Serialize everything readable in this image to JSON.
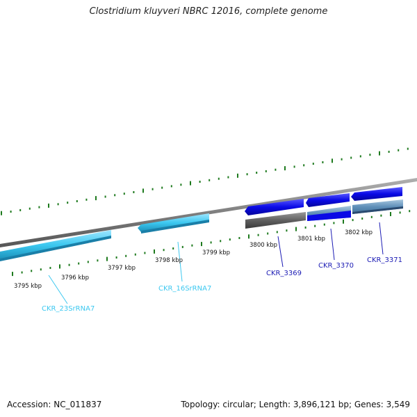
{
  "title": "Clostridium kluyveri NBRC 12016, complete genome",
  "footer": {
    "accession": "Accession: NC_011837",
    "topology": "Topology: circular; Length: 3,896,121 bp; Genes: 3,549"
  },
  "kbp_labels": [
    "3795 kbp",
    "3796 kbp",
    "3797 kbp",
    "3798 kbp",
    "3799 kbp",
    "3800 kbp",
    "3801 kbp",
    "3802 kbp"
  ],
  "genes": [
    {
      "id": "CKR_23SrRNA7",
      "label": "CKR_23SrRNA7",
      "color": "#3cc8f0"
    },
    {
      "id": "CKR_16SrRNA7",
      "label": "CKR_16SrRNA7",
      "color": "#3cc8f0"
    },
    {
      "id": "CKR_3369",
      "label": "CKR_3369",
      "color": "#1a1ab4"
    },
    {
      "id": "CKR_3370",
      "label": "CKR_3370",
      "color": "#1a1ab4"
    },
    {
      "id": "CKR_3371",
      "label": "CKR_3371",
      "color": "#1a1ab4"
    }
  ],
  "colors": {
    "backbone": "#7f7f7f",
    "tick": "#1e7a1e",
    "rRNA": "#3cc8f0",
    "cds": "#0a0ae6",
    "gray_feature": "#555555"
  }
}
